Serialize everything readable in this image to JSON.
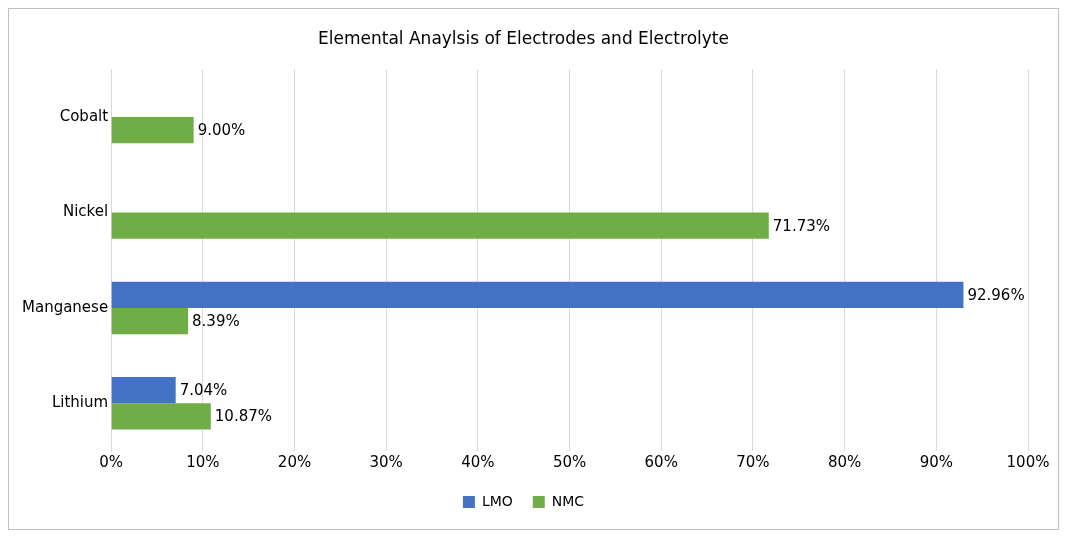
{
  "chart_data": {
    "type": "bar",
    "orientation": "horizontal",
    "title": "Elemental Anaylsis of Electrodes and Electrolyte",
    "categories": [
      "Cobalt",
      "Nickel",
      "Manganese",
      "Lithium"
    ],
    "series": [
      {
        "name": "LMO",
        "color": "#4472c4",
        "values": [
          null,
          null,
          92.96,
          7.04
        ],
        "value_labels": [
          null,
          null,
          "92.96%",
          "7.04%"
        ]
      },
      {
        "name": "NMC",
        "color": "#70ad47",
        "values": [
          9.0,
          71.73,
          8.39,
          10.87
        ],
        "value_labels": [
          "9.00%",
          "71.73%",
          "8.39%",
          "10.87%"
        ]
      }
    ],
    "xlim": [
      0,
      100
    ],
    "xticks": [
      {
        "value": 0,
        "label": "0%"
      },
      {
        "value": 10,
        "label": "10%"
      },
      {
        "value": 20,
        "label": "20%"
      },
      {
        "value": 30,
        "label": "30%"
      },
      {
        "value": 40,
        "label": "40%"
      },
      {
        "value": 50,
        "label": "50%"
      },
      {
        "value": 60,
        "label": "60%"
      },
      {
        "value": 70,
        "label": "70%"
      },
      {
        "value": 80,
        "label": "80%"
      },
      {
        "value": 90,
        "label": "90%"
      },
      {
        "value": 100,
        "label": "100%"
      }
    ],
    "grid": "x",
    "legend": "bottom"
  }
}
